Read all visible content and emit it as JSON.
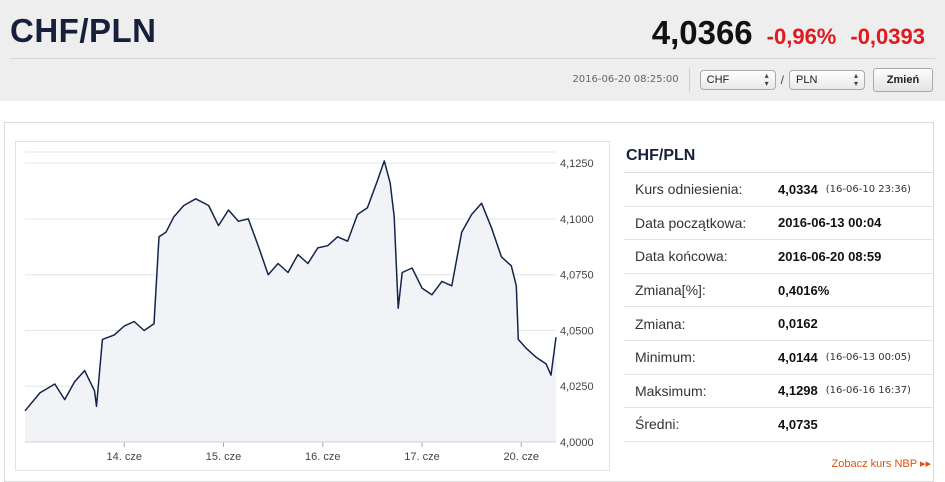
{
  "header": {
    "pair": "CHF/PLN",
    "rate": "4,0366",
    "change_pct": "-0,96%",
    "change_abs": "-0,0393"
  },
  "controls": {
    "timestamp": "2016-06-20 08:25:00",
    "from_currency": "CHF",
    "to_currency": "PLN",
    "separator": "/",
    "swap_label": "Zmień"
  },
  "side": {
    "title": "CHF/PLN",
    "rows": [
      {
        "label": "Kurs odniesienia:",
        "value": "4,0334",
        "sub": "(16-06-10 23:36)"
      },
      {
        "label": "Data początkowa:",
        "value": "2016-06-13 00:04",
        "sub": ""
      },
      {
        "label": "Data końcowa:",
        "value": "2016-06-20 08:59",
        "sub": ""
      },
      {
        "label": "Zmiana[%]:",
        "value": "0,4016%",
        "sub": ""
      },
      {
        "label": "Zmiana:",
        "value": "0,0162",
        "sub": ""
      },
      {
        "label": "Minimum:",
        "value": "4,0144",
        "sub": "(16-06-13 00:05)"
      },
      {
        "label": "Maksimum:",
        "value": "4,1298",
        "sub": "(16-06-16 16:37)"
      },
      {
        "label": "Średni:",
        "value": "4,0735",
        "sub": ""
      }
    ],
    "nbp_link": "Zobacz kurs NBP",
    "nbp_arrow": "▸▸"
  },
  "chart_data": {
    "type": "area",
    "y_ticks": [
      "4,1250",
      "4,1000",
      "4,0750",
      "4,0500",
      "4,0250",
      "4,0000"
    ],
    "y_tick_values": [
      4.125,
      4.1,
      4.075,
      4.05,
      4.025,
      4.0
    ],
    "ylim": [
      4.0,
      4.13
    ],
    "x_ticks": [
      "14. cze",
      "15. cze",
      "16. cze",
      "17. cze",
      "20. cze"
    ],
    "x_tick_values": [
      1.0,
      2.0,
      3.0,
      4.0,
      5.0
    ],
    "xlim": [
      0.0,
      5.35
    ],
    "x": [
      0.0,
      0.15,
      0.3,
      0.4,
      0.5,
      0.6,
      0.7,
      0.72,
      0.78,
      0.9,
      1.0,
      1.1,
      1.2,
      1.3,
      1.35,
      1.42,
      1.5,
      1.6,
      1.72,
      1.85,
      1.95,
      2.05,
      2.15,
      2.25,
      2.35,
      2.45,
      2.55,
      2.65,
      2.75,
      2.85,
      2.95,
      3.05,
      3.15,
      3.25,
      3.35,
      3.45,
      3.55,
      3.62,
      3.68,
      3.72,
      3.76,
      3.8,
      3.9,
      4.0,
      4.1,
      4.2,
      4.3,
      4.4,
      4.5,
      4.6,
      4.7,
      4.8,
      4.9,
      4.95,
      4.97,
      5.05,
      5.15,
      5.25,
      5.3,
      5.35
    ],
    "y": [
      4.014,
      4.022,
      4.026,
      4.019,
      4.027,
      4.032,
      4.023,
      4.016,
      4.046,
      4.048,
      4.052,
      4.054,
      4.05,
      4.053,
      4.092,
      4.094,
      4.101,
      4.106,
      4.109,
      4.106,
      4.097,
      4.104,
      4.099,
      4.1,
      4.088,
      4.075,
      4.08,
      4.076,
      4.084,
      4.08,
      4.087,
      4.088,
      4.092,
      4.09,
      4.102,
      4.105,
      4.117,
      4.126,
      4.116,
      4.101,
      4.06,
      4.076,
      4.078,
      4.069,
      4.066,
      4.072,
      4.07,
      4.094,
      4.102,
      4.107,
      4.096,
      4.083,
      4.079,
      4.07,
      4.046,
      4.042,
      4.038,
      4.035,
      4.03,
      4.047
    ],
    "grid": true
  }
}
